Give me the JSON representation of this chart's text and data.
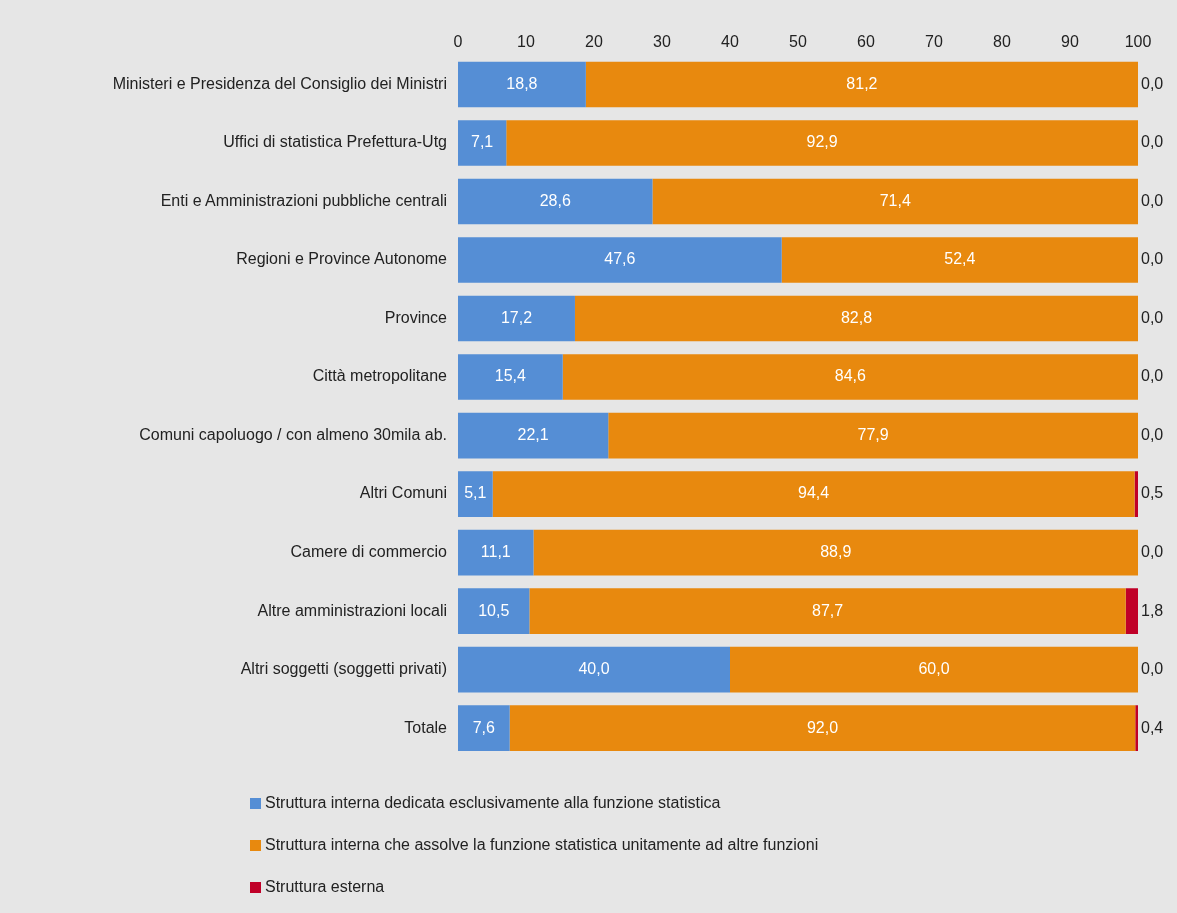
{
  "chart_data": {
    "type": "bar",
    "orientation": "horizontal",
    "stacked": true,
    "categories": [
      "Ministeri e Presidenza del Consiglio dei Ministri",
      "Uffici di statistica Prefettura-Utg",
      "Enti e Amministrazioni pubbliche centrali",
      "Regioni e Province Autonome",
      "Province",
      "Città metropolitane",
      "Comuni capoluogo / con almeno 30mila ab.",
      "Altri Comuni",
      "Camere di commercio",
      "Altre amministrazioni locali",
      "Altri soggetti (soggetti privati)",
      "Totale"
    ],
    "series": [
      {
        "name": "Struttura interna dedicata esclusivamente alla funzione statistica",
        "color": "#558ed5",
        "values": [
          18.8,
          7.1,
          28.6,
          47.6,
          17.2,
          15.4,
          22.1,
          5.1,
          11.1,
          10.5,
          40.0,
          7.6
        ],
        "value_labels": [
          "18,8",
          "7,1",
          "28,6",
          "47,6",
          "17,2",
          "15,4",
          "22,1",
          "5,1",
          "11,1",
          "10,5",
          "40,0",
          "7,6"
        ]
      },
      {
        "name": "Struttura interna che assolve la funzione statistica unitamente ad altre funzioni",
        "color": "#e8890e",
        "values": [
          81.2,
          92.9,
          71.4,
          52.4,
          82.8,
          84.6,
          77.9,
          94.4,
          88.9,
          87.7,
          60.0,
          92.0
        ],
        "value_labels": [
          "81,2",
          "92,9",
          "71,4",
          "52,4",
          "82,8",
          "84,6",
          "77,9",
          "94,4",
          "88,9",
          "87,7",
          "60,0",
          "92,0"
        ]
      },
      {
        "name": "Struttura esterna",
        "color": "#c00028",
        "values": [
          0.0,
          0.0,
          0.0,
          0.0,
          0.0,
          0.0,
          0.0,
          0.5,
          0.0,
          1.8,
          0.0,
          0.4
        ],
        "value_labels": [
          "0,0",
          "0,0",
          "0,0",
          "0,0",
          "0,0",
          "0,0",
          "0,0",
          "0,5",
          "0,0",
          "1,8",
          "0,0",
          "0,4"
        ]
      }
    ],
    "xlim": [
      0,
      100
    ],
    "xticks": [
      0,
      10,
      20,
      30,
      40,
      50,
      60,
      70,
      80,
      90,
      100
    ],
    "grid": false,
    "legend": "bottom"
  }
}
